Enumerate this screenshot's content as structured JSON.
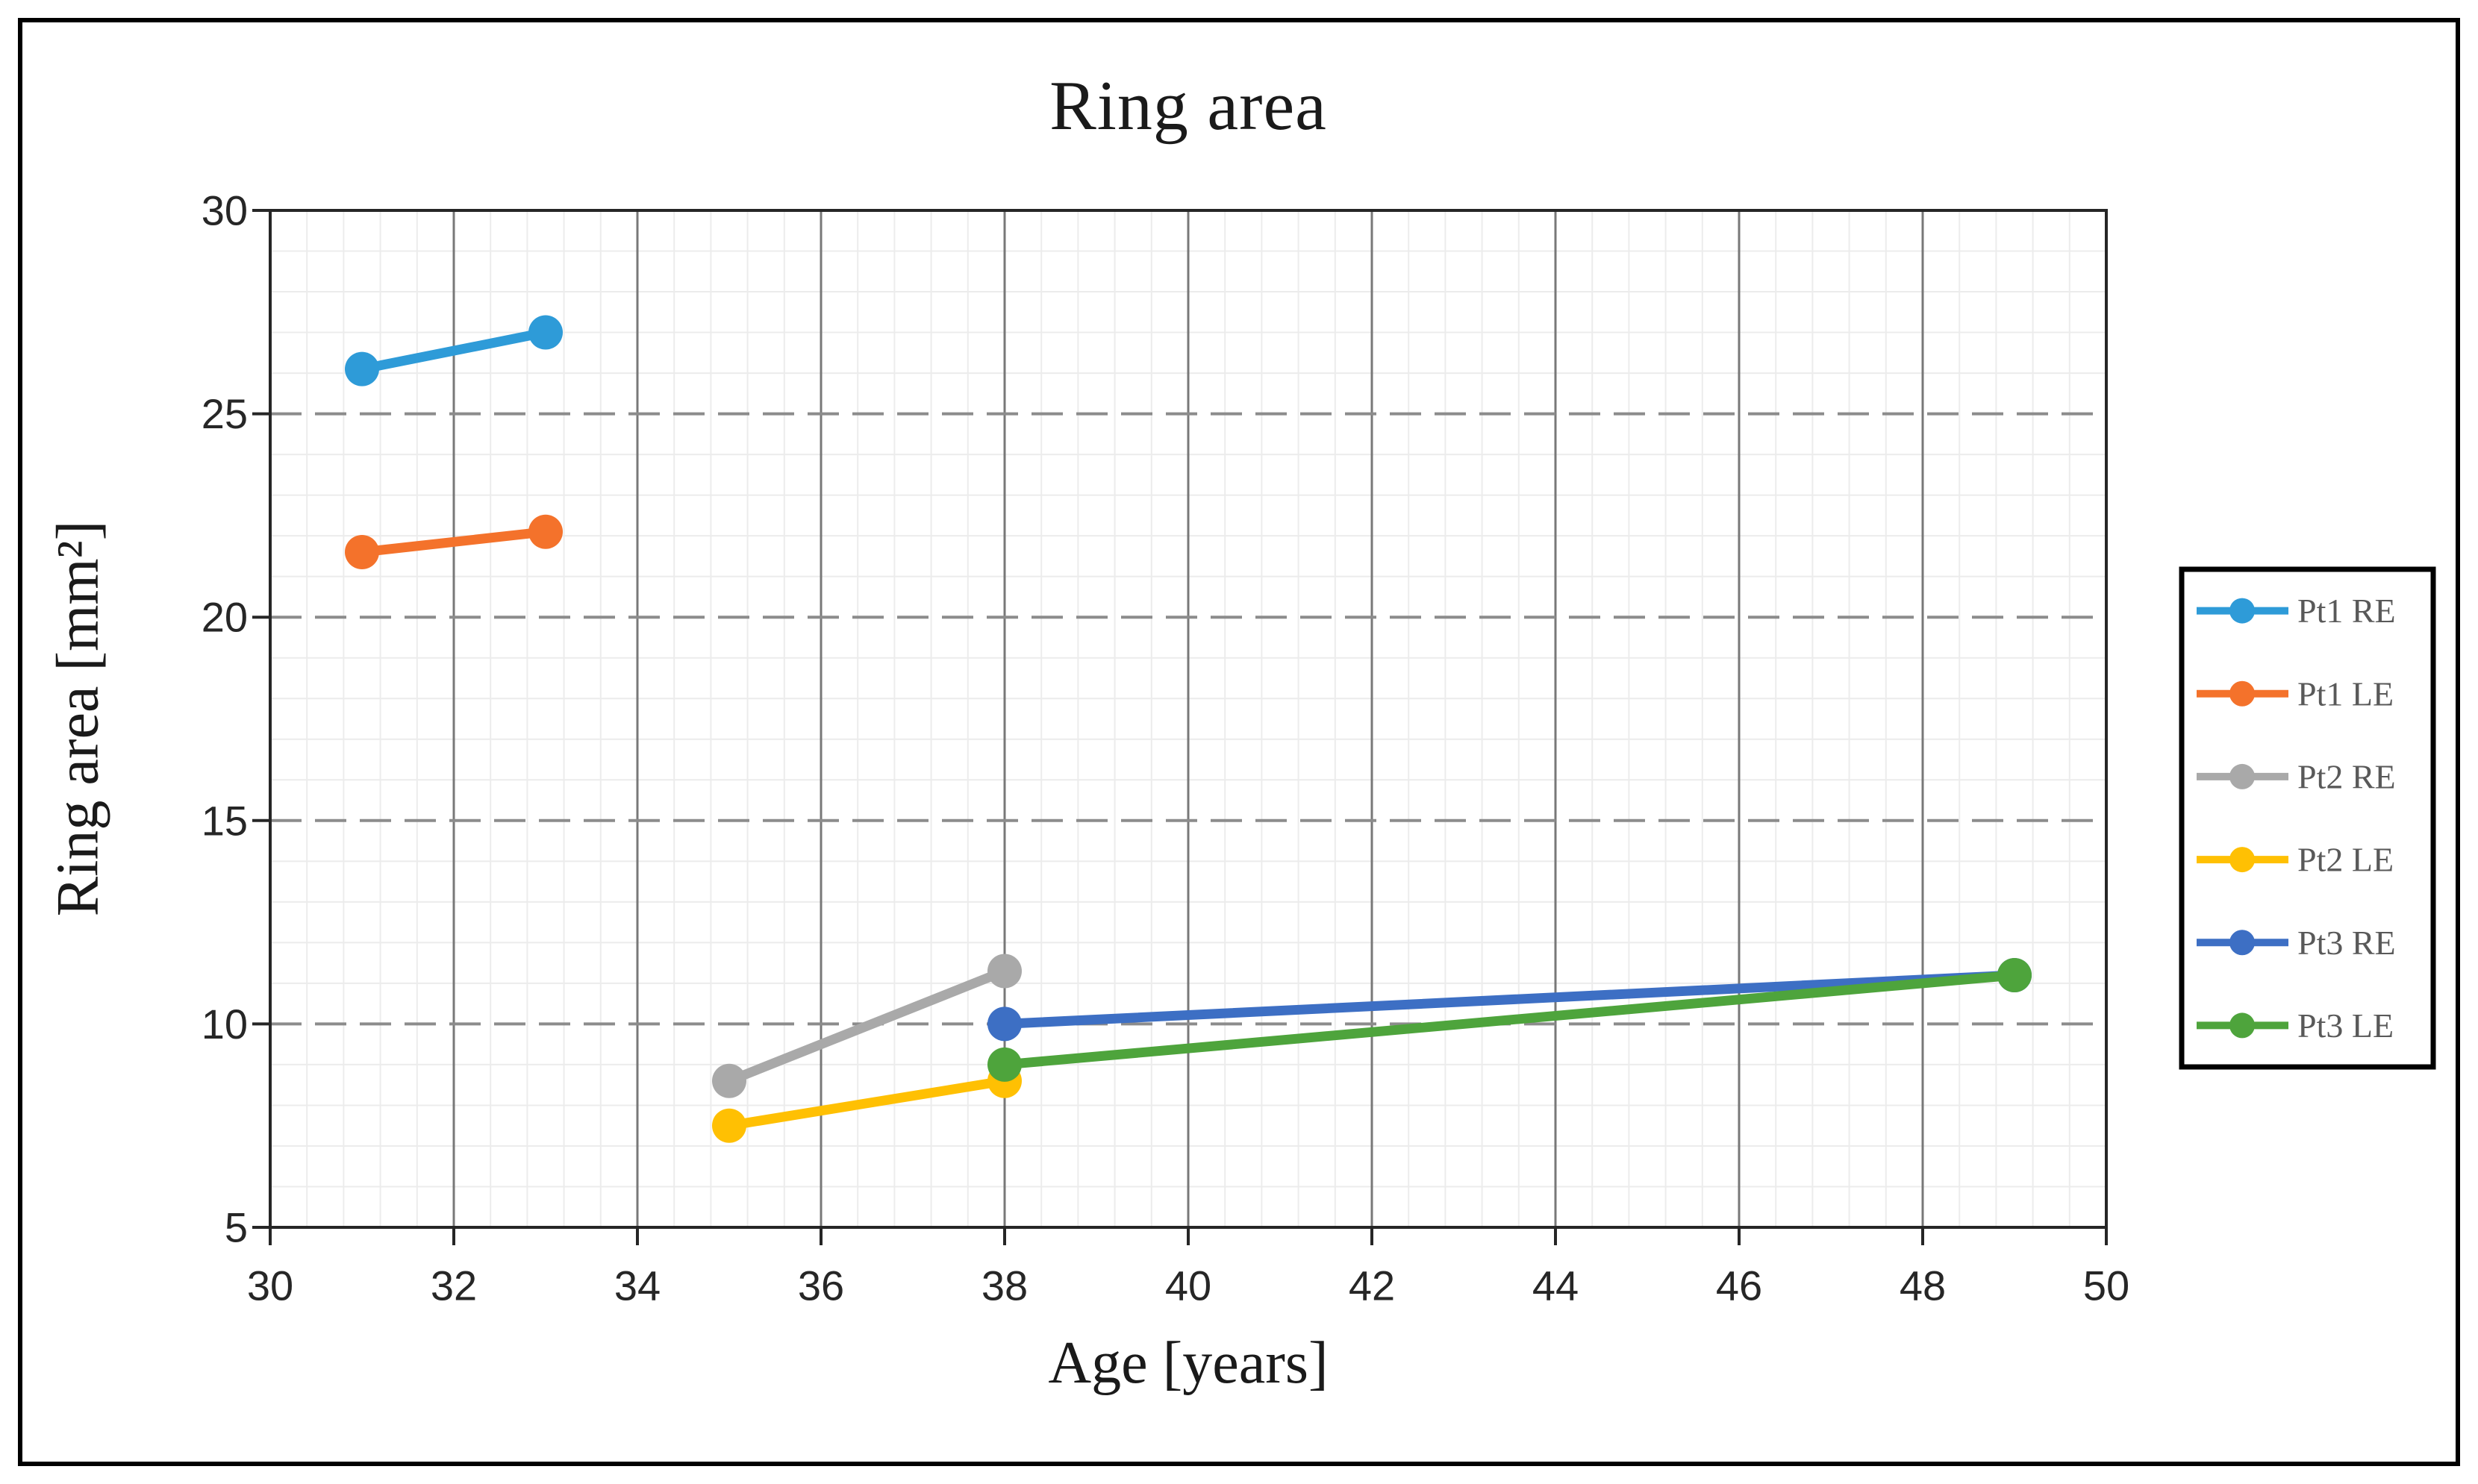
{
  "figure": {
    "title": "Ring area"
  },
  "chart_data": {
    "type": "line",
    "title": "Ring area",
    "xlabel": "Age [years]",
    "ylabel": "Ring area [mm²]",
    "x_axis": {
      "min": 30,
      "max": 50,
      "major": 2,
      "minor": 0.4,
      "ticks": [
        30,
        32,
        34,
        36,
        38,
        40,
        42,
        44,
        46,
        48,
        50
      ]
    },
    "y_axis": {
      "min": 5,
      "max": 30,
      "major": 5,
      "minor": 1,
      "ticks": [
        5,
        10,
        15,
        20,
        25,
        30
      ]
    },
    "grid": "on",
    "legend_position": "right",
    "style": {
      "minor_grid_color": "#ececec",
      "major_vgrid_color": "#787878",
      "major_hgrid_color": "#8c8c8c",
      "plot_border_color": "#262626",
      "tick_label_color": "#262626",
      "legend_text_color": "#595959",
      "frame_color": "#000000",
      "background": "#ffffff"
    },
    "series": [
      {
        "name": "Pt1 RE",
        "color": "#2E9BD8",
        "points": [
          [
            31,
            26.1
          ],
          [
            33,
            27.0
          ]
        ]
      },
      {
        "name": "Pt1 LE",
        "color": "#F4722B",
        "points": [
          [
            31,
            21.6
          ],
          [
            33,
            22.1
          ]
        ]
      },
      {
        "name": "Pt2 RE",
        "color": "#A9A9A9",
        "points": [
          [
            35,
            8.6
          ],
          [
            38,
            11.3
          ]
        ]
      },
      {
        "name": "Pt2 LE",
        "color": "#FFC003",
        "points": [
          [
            35,
            7.5
          ],
          [
            38,
            8.6
          ]
        ]
      },
      {
        "name": "Pt3 RE",
        "color": "#3D6FC4",
        "points": [
          [
            38,
            10.0
          ],
          [
            49,
            11.2
          ]
        ]
      },
      {
        "name": "Pt3 LE",
        "color": "#4EA43C",
        "points": [
          [
            38,
            9.0
          ],
          [
            49,
            11.2
          ]
        ]
      }
    ]
  }
}
